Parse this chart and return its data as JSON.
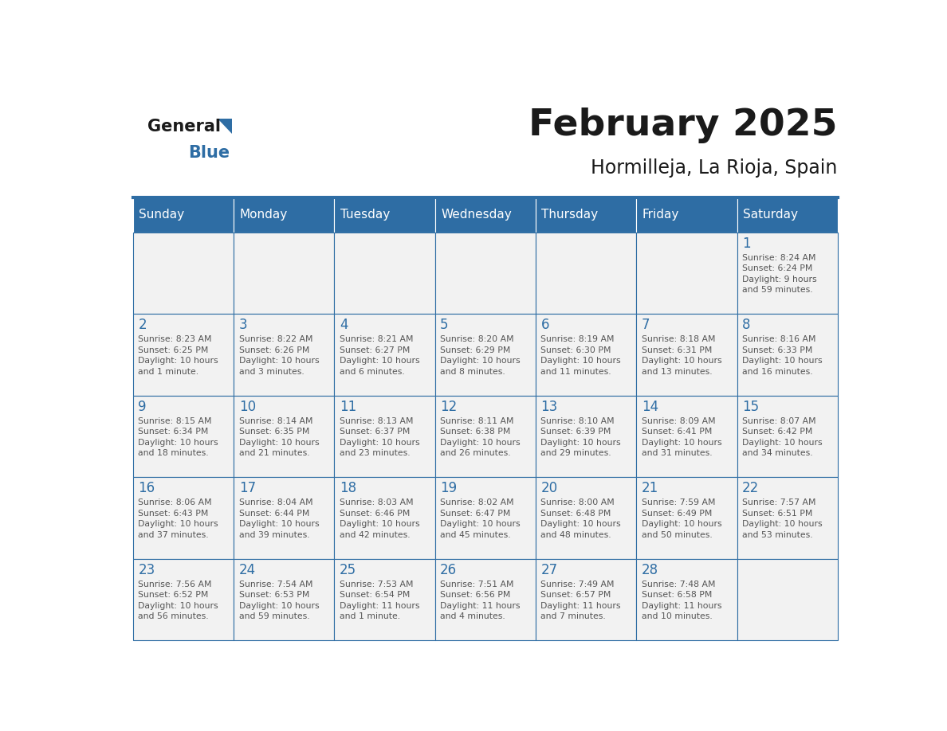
{
  "title": "February 2025",
  "subtitle": "Hormilleja, La Rioja, Spain",
  "header_bg": "#2E6DA4",
  "header_text_color": "#FFFFFF",
  "cell_bg": "#F2F2F2",
  "border_color": "#2E6DA4",
  "title_color": "#1a1a1a",
  "subtitle_color": "#1a1a1a",
  "day_number_color": "#2E6DA4",
  "cell_text_color": "#555555",
  "days_of_week": [
    "Sunday",
    "Monday",
    "Tuesday",
    "Wednesday",
    "Thursday",
    "Friday",
    "Saturday"
  ],
  "weeks": [
    [
      {
        "day": null,
        "info": null
      },
      {
        "day": null,
        "info": null
      },
      {
        "day": null,
        "info": null
      },
      {
        "day": null,
        "info": null
      },
      {
        "day": null,
        "info": null
      },
      {
        "day": null,
        "info": null
      },
      {
        "day": 1,
        "info": "Sunrise: 8:24 AM\nSunset: 6:24 PM\nDaylight: 9 hours\nand 59 minutes."
      }
    ],
    [
      {
        "day": 2,
        "info": "Sunrise: 8:23 AM\nSunset: 6:25 PM\nDaylight: 10 hours\nand 1 minute."
      },
      {
        "day": 3,
        "info": "Sunrise: 8:22 AM\nSunset: 6:26 PM\nDaylight: 10 hours\nand 3 minutes."
      },
      {
        "day": 4,
        "info": "Sunrise: 8:21 AM\nSunset: 6:27 PM\nDaylight: 10 hours\nand 6 minutes."
      },
      {
        "day": 5,
        "info": "Sunrise: 8:20 AM\nSunset: 6:29 PM\nDaylight: 10 hours\nand 8 minutes."
      },
      {
        "day": 6,
        "info": "Sunrise: 8:19 AM\nSunset: 6:30 PM\nDaylight: 10 hours\nand 11 minutes."
      },
      {
        "day": 7,
        "info": "Sunrise: 8:18 AM\nSunset: 6:31 PM\nDaylight: 10 hours\nand 13 minutes."
      },
      {
        "day": 8,
        "info": "Sunrise: 8:16 AM\nSunset: 6:33 PM\nDaylight: 10 hours\nand 16 minutes."
      }
    ],
    [
      {
        "day": 9,
        "info": "Sunrise: 8:15 AM\nSunset: 6:34 PM\nDaylight: 10 hours\nand 18 minutes."
      },
      {
        "day": 10,
        "info": "Sunrise: 8:14 AM\nSunset: 6:35 PM\nDaylight: 10 hours\nand 21 minutes."
      },
      {
        "day": 11,
        "info": "Sunrise: 8:13 AM\nSunset: 6:37 PM\nDaylight: 10 hours\nand 23 minutes."
      },
      {
        "day": 12,
        "info": "Sunrise: 8:11 AM\nSunset: 6:38 PM\nDaylight: 10 hours\nand 26 minutes."
      },
      {
        "day": 13,
        "info": "Sunrise: 8:10 AM\nSunset: 6:39 PM\nDaylight: 10 hours\nand 29 minutes."
      },
      {
        "day": 14,
        "info": "Sunrise: 8:09 AM\nSunset: 6:41 PM\nDaylight: 10 hours\nand 31 minutes."
      },
      {
        "day": 15,
        "info": "Sunrise: 8:07 AM\nSunset: 6:42 PM\nDaylight: 10 hours\nand 34 minutes."
      }
    ],
    [
      {
        "day": 16,
        "info": "Sunrise: 8:06 AM\nSunset: 6:43 PM\nDaylight: 10 hours\nand 37 minutes."
      },
      {
        "day": 17,
        "info": "Sunrise: 8:04 AM\nSunset: 6:44 PM\nDaylight: 10 hours\nand 39 minutes."
      },
      {
        "day": 18,
        "info": "Sunrise: 8:03 AM\nSunset: 6:46 PM\nDaylight: 10 hours\nand 42 minutes."
      },
      {
        "day": 19,
        "info": "Sunrise: 8:02 AM\nSunset: 6:47 PM\nDaylight: 10 hours\nand 45 minutes."
      },
      {
        "day": 20,
        "info": "Sunrise: 8:00 AM\nSunset: 6:48 PM\nDaylight: 10 hours\nand 48 minutes."
      },
      {
        "day": 21,
        "info": "Sunrise: 7:59 AM\nSunset: 6:49 PM\nDaylight: 10 hours\nand 50 minutes."
      },
      {
        "day": 22,
        "info": "Sunrise: 7:57 AM\nSunset: 6:51 PM\nDaylight: 10 hours\nand 53 minutes."
      }
    ],
    [
      {
        "day": 23,
        "info": "Sunrise: 7:56 AM\nSunset: 6:52 PM\nDaylight: 10 hours\nand 56 minutes."
      },
      {
        "day": 24,
        "info": "Sunrise: 7:54 AM\nSunset: 6:53 PM\nDaylight: 10 hours\nand 59 minutes."
      },
      {
        "day": 25,
        "info": "Sunrise: 7:53 AM\nSunset: 6:54 PM\nDaylight: 11 hours\nand 1 minute."
      },
      {
        "day": 26,
        "info": "Sunrise: 7:51 AM\nSunset: 6:56 PM\nDaylight: 11 hours\nand 4 minutes."
      },
      {
        "day": 27,
        "info": "Sunrise: 7:49 AM\nSunset: 6:57 PM\nDaylight: 11 hours\nand 7 minutes."
      },
      {
        "day": 28,
        "info": "Sunrise: 7:48 AM\nSunset: 6:58 PM\nDaylight: 11 hours\nand 10 minutes."
      },
      {
        "day": null,
        "info": null
      }
    ]
  ],
  "logo_general_color": "#1a1a1a",
  "logo_blue_color": "#2E6DA4",
  "separator_color": "#2E6DA4"
}
